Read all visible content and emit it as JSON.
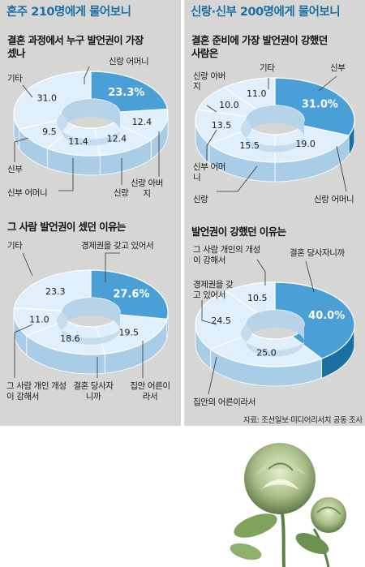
{
  "left": {
    "title": "혼주 210명에게 물어보니",
    "q1": {
      "line1": "결혼 과정에서 누구 발언권이 가장",
      "line2": "셌나"
    },
    "q2": {
      "line1": "그 사람 발언권이 셌던 이유는"
    }
  },
  "right": {
    "title": "신랑·신부 200명에게 물어보니",
    "q1": {
      "line1": "결혼 준비에 가장 발언권이 강했던",
      "line2": "사람은"
    },
    "q2": {
      "line1": "발언권이 강했던 이유는"
    }
  },
  "source": "자료: 조선일보·미디어리서치 공동 조사",
  "colors": {
    "highlight": "#4aa0d6",
    "highlight_side": "#1b6fa3",
    "ring": "#dfeffb",
    "ring_side": "#a9cde7",
    "title": "#1b6fa3"
  },
  "chart_data": [
    {
      "type": "pie",
      "title": "결혼 과정에서 누구 발언권이 가장 셌나",
      "slices": [
        {
          "label": "신랑 어머니",
          "value": 23.3,
          "display": "23.3%"
        },
        {
          "label": "신랑 아버지",
          "value": 12.4,
          "display": "12.4"
        },
        {
          "label": "신랑",
          "value": 12.4,
          "display": "12.4"
        },
        {
          "label": "신부 어머니",
          "value": 11.4,
          "display": "11.4"
        },
        {
          "label": "신부",
          "value": 9.5,
          "display": "9.5"
        },
        {
          "label": "기타",
          "value": 31.0,
          "display": "31.0"
        }
      ]
    },
    {
      "type": "pie",
      "title": "그 사람 발언권이 셌던 이유는",
      "slices": [
        {
          "label": "경제권을 갖고 있어서",
          "value": 27.6,
          "display": "27.6%"
        },
        {
          "label": "집안 어른이라서",
          "value": 19.5,
          "display": "19.5"
        },
        {
          "label": "결혼 당사자니까",
          "value": 18.6,
          "display": "18.6"
        },
        {
          "label": "그 사람 개인 개성이 강해서",
          "value": 11.0,
          "display": "11.0"
        },
        {
          "label": "기타",
          "value": 23.3,
          "display": "23.3"
        }
      ]
    },
    {
      "type": "pie",
      "title": "결혼 준비에 가장 발언권이 강했던 사람은",
      "slices": [
        {
          "label": "신부",
          "value": 31.0,
          "display": "31.0%"
        },
        {
          "label": "신랑 어머니",
          "value": 19.0,
          "display": "19.0"
        },
        {
          "label": "신랑",
          "value": 15.5,
          "display": "15.5"
        },
        {
          "label": "신부 어머니",
          "value": 13.5,
          "display": "13.5"
        },
        {
          "label": "신랑 아버지",
          "value": 10.0,
          "display": "10.0"
        },
        {
          "label": "기타",
          "value": 11.0,
          "display": "11.0"
        }
      ]
    },
    {
      "type": "pie",
      "title": "발언권이 강했던 이유는",
      "slices": [
        {
          "label": "결혼 당사자니까",
          "value": 40.0,
          "display": "40.0%"
        },
        {
          "label": "집안의 어른이라서",
          "value": 25.0,
          "display": "25.0"
        },
        {
          "label": "경제권을 갖고 있어서",
          "value": 24.5,
          "display": "24.5"
        },
        {
          "label": "그 사람 개인의 개성이 강해서",
          "value": 10.5,
          "display": "10.5"
        }
      ]
    }
  ]
}
